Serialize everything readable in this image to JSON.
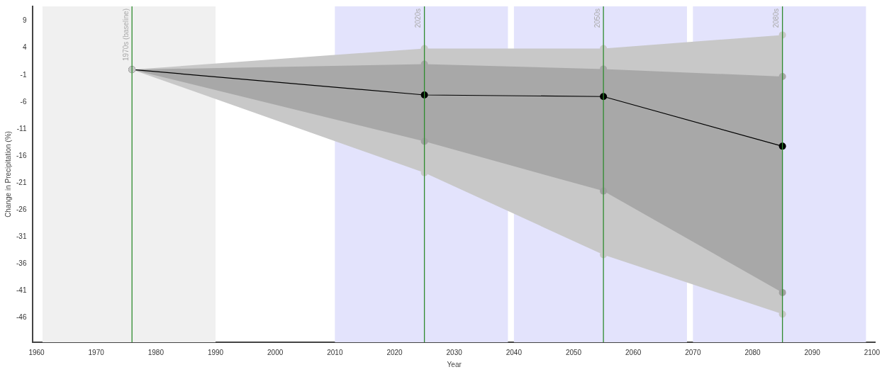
{
  "chart_data": {
    "type": "line",
    "xlabel": "Year",
    "ylabel": "Change in Precipitation (%)",
    "x": [
      1976,
      2025,
      2055,
      2085
    ],
    "series": [
      {
        "type": "scatter",
        "color": "#c8c8c8",
        "values": [
          0,
          3.9,
          3.9,
          6.4
        ],
        "lower": [
          0,
          -19.1,
          -34.3,
          -45.3
        ],
        "upper": [
          0,
          3.9,
          3.9,
          6.4
        ]
      },
      {
        "type": "scatter",
        "color": "#a8a8a8",
        "values": [
          null,
          1.0,
          0.1,
          -1.3
        ],
        "lower": [
          0,
          -13.3,
          -22.5,
          -41.3
        ],
        "upper": [
          0,
          1.0,
          0.1,
          -1.3
        ]
      },
      {
        "type": "scatter",
        "color": "#a0a0a0",
        "values": [
          null,
          -13.3,
          -22.5,
          -41.3
        ]
      },
      {
        "type": "scatter",
        "color": "#c8c8c8",
        "values": [
          null,
          -19.1,
          -34.3,
          -45.3
        ]
      },
      {
        "color": "#000000",
        "values": [
          0,
          -4.7,
          -5.0,
          -14.2
        ]
      }
    ],
    "xlim": [
      1959.4,
      2100.6
    ],
    "xticks": [
      1960,
      1970,
      1980,
      1990,
      2000,
      2010,
      2020,
      2030,
      2040,
      2050,
      2060,
      2070,
      2080,
      2090,
      2100
    ],
    "ylim": [
      -50.5,
      11.7
    ],
    "yticks": [
      9,
      4,
      -1,
      -6,
      -11,
      -16,
      -21,
      -26,
      -31,
      -36,
      -41,
      -46
    ],
    "ref_lines": [
      {
        "axis": "x",
        "value": 1976,
        "label": "1970s (baseline)",
        "color": "#2e8b2e"
      },
      {
        "axis": "x",
        "value": 2025,
        "label": "2020s",
        "color": "#2e8b2e"
      },
      {
        "axis": "x",
        "value": 2055,
        "label": "2050s",
        "color": "#2e8b2e"
      },
      {
        "axis": "x",
        "value": 2085,
        "label": "2080s",
        "color": "#2e8b2e"
      }
    ],
    "bands": [
      {
        "axis": "x",
        "from": 1961,
        "to": 1990,
        "color": "#f0f0f0"
      },
      {
        "axis": "x",
        "from": 2010,
        "to": 2039,
        "color": "#e3e3fc"
      },
      {
        "axis": "x",
        "from": 2040,
        "to": 2069,
        "color": "#e3e3fc"
      },
      {
        "axis": "x",
        "from": 2070,
        "to": 2099,
        "color": "#e3e3fc"
      }
    ],
    "marker": "circle",
    "line_style": "solid"
  }
}
